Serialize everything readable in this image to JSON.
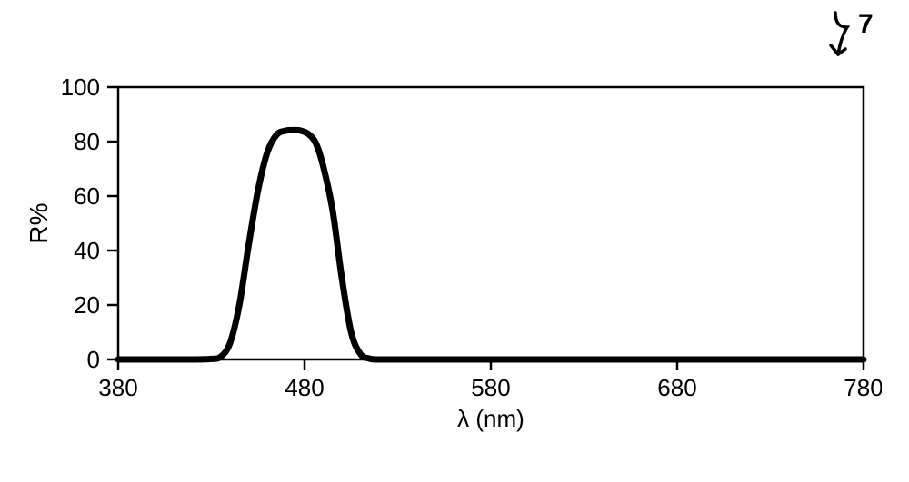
{
  "figure_label": "7",
  "chart": {
    "type": "line",
    "background_color": "#ffffff",
    "frame_color": "#000000",
    "frame_width": 2.5,
    "line_color": "#000000",
    "line_width": 7,
    "x": {
      "label": "λ (nm)",
      "min": 380,
      "max": 780,
      "ticks": [
        380,
        480,
        580,
        680,
        780
      ],
      "tick_len": 12,
      "tick_width": 2.5,
      "label_fontsize": 26,
      "tick_fontsize": 26
    },
    "y": {
      "label": "R%",
      "min": 0,
      "max": 100,
      "ticks": [
        0,
        20,
        40,
        60,
        80,
        100
      ],
      "tick_len": 12,
      "tick_width": 2.5,
      "label_fontsize": 28,
      "tick_fontsize": 26
    },
    "series": [
      {
        "name": "reflectance",
        "points": [
          [
            380,
            0.0
          ],
          [
            400,
            0.0
          ],
          [
            420,
            0.0
          ],
          [
            430,
            0.2
          ],
          [
            435,
            1.0
          ],
          [
            440,
            6.0
          ],
          [
            445,
            20.0
          ],
          [
            450,
            42.0
          ],
          [
            455,
            62.0
          ],
          [
            460,
            76.0
          ],
          [
            465,
            82.5
          ],
          [
            470,
            84.0
          ],
          [
            475,
            84.2
          ],
          [
            478,
            84.0
          ],
          [
            482,
            82.8
          ],
          [
            486,
            79.5
          ],
          [
            490,
            71.0
          ],
          [
            495,
            55.0
          ],
          [
            500,
            30.0
          ],
          [
            505,
            10.0
          ],
          [
            510,
            2.0
          ],
          [
            515,
            0.3
          ],
          [
            520,
            0.0
          ],
          [
            540,
            0.0
          ],
          [
            580,
            0.0
          ],
          [
            620,
            0.0
          ],
          [
            660,
            0.0
          ],
          [
            700,
            0.0
          ],
          [
            740,
            0.0
          ],
          [
            780,
            0.0
          ]
        ]
      }
    ]
  }
}
